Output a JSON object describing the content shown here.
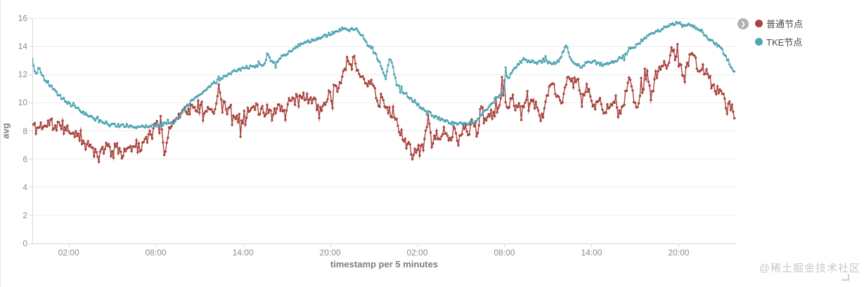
{
  "legend": {
    "toggle_icon": "❯",
    "items": [
      {
        "label": "普通节点",
        "color": "#a9423c"
      },
      {
        "label": "TKE节点",
        "color": "#4fa4b4"
      }
    ]
  },
  "watermark": "@稀土掘金技术社区",
  "theme": {
    "grid_color": "#ededed",
    "axis_color": "#d8d8d8",
    "tick_text_color": "#8c8c8c",
    "axis_title_color": "#7d7d7d"
  },
  "chart_data": {
    "type": "line",
    "title": "",
    "xlabel": "timestamp per 5 minutes",
    "ylabel": "avg",
    "grid": "horizontal",
    "legend_position": "top-right",
    "x_axis": {
      "title": "timestamp per 5 minutes",
      "total_hours": 48.4,
      "interval_minutes": 5,
      "ticks": [
        {
          "hour": 2.5,
          "label": "02:00"
        },
        {
          "hour": 8.5,
          "label": "08:00"
        },
        {
          "hour": 14.5,
          "label": "14:00"
        },
        {
          "hour": 20.5,
          "label": "20:00"
        },
        {
          "hour": 26.5,
          "label": "02:00"
        },
        {
          "hour": 32.5,
          "label": "08:00"
        },
        {
          "hour": 38.5,
          "label": "14:00"
        },
        {
          "hour": 44.5,
          "label": "20:00"
        }
      ]
    },
    "y_axis": {
      "title": "avg",
      "ticks": [
        0,
        2,
        4,
        6,
        8,
        10,
        12,
        14,
        16
      ],
      "range": [
        0,
        16
      ]
    },
    "series": [
      {
        "name": "普通节点",
        "color": "#a9423c",
        "noise": 0.42,
        "spike_prob": 0.12,
        "spike_mult": 2.2,
        "seed": 11,
        "marker_radius": 1.7,
        "keyframes": [
          [
            0,
            8.45
          ],
          [
            0.3,
            8.1
          ],
          [
            0.6,
            8.45
          ],
          [
            0.9,
            8.25
          ],
          [
            1.2,
            8.6
          ],
          [
            1.5,
            8.3
          ],
          [
            1.9,
            8.4
          ],
          [
            2.3,
            8.1
          ],
          [
            2.6,
            8.0
          ],
          [
            3.0,
            7.6
          ],
          [
            3.4,
            7.25
          ],
          [
            3.8,
            6.9
          ],
          [
            4.2,
            6.6
          ],
          [
            4.5,
            5.95
          ],
          [
            4.75,
            6.6
          ],
          [
            5.1,
            6.9
          ],
          [
            5.5,
            6.55
          ],
          [
            5.9,
            6.8
          ],
          [
            6.25,
            6.4
          ],
          [
            6.6,
            7.0
          ],
          [
            7.0,
            7.2
          ],
          [
            7.4,
            6.85
          ],
          [
            7.8,
            7.3
          ],
          [
            8.2,
            7.75
          ],
          [
            8.55,
            8.3
          ],
          [
            8.85,
            8.6
          ],
          [
            9.0,
            7.4
          ],
          [
            9.1,
            6.5
          ],
          [
            9.3,
            7.5
          ],
          [
            9.55,
            8.4
          ],
          [
            9.85,
            8.9
          ],
          [
            10.2,
            9.3
          ],
          [
            10.7,
            9.55
          ],
          [
            11.2,
            9.45
          ],
          [
            11.7,
            9.7
          ],
          [
            12.2,
            9.45
          ],
          [
            12.6,
            9.6
          ],
          [
            12.87,
            10.9
          ],
          [
            13.1,
            9.8
          ],
          [
            13.6,
            9.5
          ],
          [
            14.0,
            9.2
          ],
          [
            14.4,
            8.8
          ],
          [
            14.8,
            9.4
          ],
          [
            15.3,
            9.6
          ],
          [
            15.8,
            9.35
          ],
          [
            16.3,
            9.6
          ],
          [
            16.8,
            9.45
          ],
          [
            17.3,
            9.7
          ],
          [
            17.8,
            10.0
          ],
          [
            18.3,
            10.15
          ],
          [
            18.8,
            10.4
          ],
          [
            19.3,
            10.25
          ],
          [
            19.8,
            9.3
          ],
          [
            20.1,
            10.1
          ],
          [
            20.5,
            10.6
          ],
          [
            21.0,
            11.2
          ],
          [
            21.4,
            12.0
          ],
          [
            21.7,
            13.2
          ],
          [
            21.9,
            12.6
          ],
          [
            22.1,
            13.3
          ],
          [
            22.4,
            12.4
          ],
          [
            22.7,
            11.9
          ],
          [
            23.0,
            11.6
          ],
          [
            23.3,
            11.3
          ],
          [
            23.6,
            10.8
          ],
          [
            23.9,
            9.6
          ],
          [
            24.1,
            10.2
          ],
          [
            24.35,
            9.9
          ],
          [
            24.6,
            9.4
          ],
          [
            24.9,
            9.3
          ],
          [
            25.2,
            8.0
          ],
          [
            25.5,
            7.6
          ],
          [
            25.8,
            6.9
          ],
          [
            26.2,
            6.6
          ],
          [
            26.6,
            6.5
          ],
          [
            26.9,
            6.65
          ],
          [
            27.1,
            7.8
          ],
          [
            27.25,
            9.3
          ],
          [
            27.4,
            7.6
          ],
          [
            27.6,
            6.9
          ],
          [
            27.8,
            8.0
          ],
          [
            28.0,
            7.3
          ],
          [
            28.3,
            8.2
          ],
          [
            28.6,
            7.4
          ],
          [
            29.0,
            8.0
          ],
          [
            29.3,
            7.2
          ],
          [
            29.7,
            8.5
          ],
          [
            30.0,
            7.6
          ],
          [
            30.3,
            9.1
          ],
          [
            30.6,
            7.9
          ],
          [
            30.9,
            9.3
          ],
          [
            31.2,
            8.5
          ],
          [
            31.5,
            9.1
          ],
          [
            31.9,
            9.5
          ],
          [
            32.2,
            10.2
          ],
          [
            32.5,
            11.2
          ],
          [
            32.7,
            9.4
          ],
          [
            33.0,
            10.3
          ],
          [
            33.4,
            9.6
          ],
          [
            33.8,
            9.9
          ],
          [
            34.2,
            9.7
          ],
          [
            34.6,
            10.0
          ],
          [
            35.0,
            8.6
          ],
          [
            35.4,
            10.2
          ],
          [
            35.8,
            11.5
          ],
          [
            36.2,
            10.1
          ],
          [
            36.6,
            10.4
          ],
          [
            36.9,
            12.1
          ],
          [
            37.2,
            11.2
          ],
          [
            37.5,
            11.8
          ],
          [
            37.8,
            10.4
          ],
          [
            38.2,
            11.0
          ],
          [
            38.6,
            9.8
          ],
          [
            39.0,
            10.2
          ],
          [
            39.4,
            9.6
          ],
          [
            39.8,
            9.9
          ],
          [
            40.2,
            9.5
          ],
          [
            40.5,
            8.9
          ],
          [
            40.8,
            10.3
          ],
          [
            41.1,
            11.7
          ],
          [
            41.4,
            10.2
          ],
          [
            41.7,
            9.7
          ],
          [
            42.0,
            11.3
          ],
          [
            42.3,
            12.15
          ],
          [
            42.6,
            10.4
          ],
          [
            42.9,
            11.8
          ],
          [
            43.2,
            12.5
          ],
          [
            43.5,
            13.0
          ],
          [
            43.8,
            12.6
          ],
          [
            44.1,
            14.0
          ],
          [
            44.4,
            13.2
          ],
          [
            44.7,
            12.4
          ],
          [
            45.0,
            12.1
          ],
          [
            45.35,
            13.5
          ],
          [
            45.7,
            12.75
          ],
          [
            46.0,
            12.4
          ],
          [
            46.35,
            12.25
          ],
          [
            46.7,
            11.5
          ],
          [
            47.0,
            11.0
          ],
          [
            47.3,
            10.6
          ],
          [
            47.6,
            10.3
          ],
          [
            47.9,
            9.6
          ],
          [
            48.1,
            9.8
          ],
          [
            48.4,
            8.55
          ]
        ]
      },
      {
        "name": "TKE节点",
        "color": "#4fa4b4",
        "noise": 0.12,
        "spike_prob": 0.06,
        "spike_mult": 2.5,
        "seed": 5,
        "marker_radius": 1.6,
        "keyframes": [
          [
            0,
            13.05
          ],
          [
            0.15,
            12.4
          ],
          [
            0.3,
            11.85
          ],
          [
            0.45,
            12.55
          ],
          [
            0.6,
            12.15
          ],
          [
            0.8,
            11.75
          ],
          [
            1.1,
            11.4
          ],
          [
            1.6,
            10.75
          ],
          [
            2.1,
            10.3
          ],
          [
            2.6,
            9.9
          ],
          [
            3.1,
            9.55
          ],
          [
            3.6,
            9.25
          ],
          [
            4.1,
            8.95
          ],
          [
            4.6,
            8.7
          ],
          [
            5.1,
            8.55
          ],
          [
            5.6,
            8.45
          ],
          [
            6.2,
            8.35
          ],
          [
            7.0,
            8.3
          ],
          [
            7.8,
            8.35
          ],
          [
            8.5,
            8.4
          ],
          [
            9.2,
            8.5
          ],
          [
            9.7,
            8.6
          ],
          [
            10.0,
            8.85
          ],
          [
            10.4,
            9.4
          ],
          [
            10.8,
            9.95
          ],
          [
            11.2,
            10.3
          ],
          [
            11.6,
            10.65
          ],
          [
            12.0,
            11.0
          ],
          [
            12.4,
            11.35
          ],
          [
            12.8,
            11.6
          ],
          [
            13.2,
            11.85
          ],
          [
            13.7,
            12.1
          ],
          [
            14.2,
            12.35
          ],
          [
            14.7,
            12.5
          ],
          [
            15.3,
            12.6
          ],
          [
            15.8,
            12.7
          ],
          [
            16.05,
            12.75
          ],
          [
            16.2,
            13.6
          ],
          [
            16.4,
            12.85
          ],
          [
            16.8,
            12.9
          ],
          [
            17.2,
            13.3
          ],
          [
            17.6,
            13.55
          ],
          [
            18.0,
            13.8
          ],
          [
            18.4,
            14.1
          ],
          [
            18.8,
            14.3
          ],
          [
            19.3,
            14.45
          ],
          [
            19.8,
            14.55
          ],
          [
            20.2,
            14.75
          ],
          [
            20.6,
            14.95
          ],
          [
            21.0,
            15.1
          ],
          [
            21.3,
            15.25
          ],
          [
            21.55,
            15.4
          ],
          [
            21.8,
            15.1
          ],
          [
            22.1,
            15.3
          ],
          [
            22.45,
            15.15
          ],
          [
            22.8,
            14.6
          ],
          [
            23.1,
            14.15
          ],
          [
            23.35,
            13.9
          ],
          [
            23.7,
            13.3
          ],
          [
            24.0,
            12.6
          ],
          [
            24.2,
            12.1
          ],
          [
            24.35,
            11.75
          ],
          [
            24.5,
            12.7
          ],
          [
            24.62,
            13.3
          ],
          [
            24.8,
            12.6
          ],
          [
            25.1,
            11.3
          ],
          [
            25.5,
            10.85
          ],
          [
            26.0,
            10.3
          ],
          [
            26.5,
            9.85
          ],
          [
            27.0,
            9.5
          ],
          [
            27.5,
            9.15
          ],
          [
            28.0,
            8.85
          ],
          [
            28.5,
            8.7
          ],
          [
            29.2,
            8.45
          ],
          [
            29.7,
            8.5
          ],
          [
            30.1,
            8.55
          ],
          [
            30.5,
            8.7
          ],
          [
            30.9,
            9.1
          ],
          [
            31.3,
            9.6
          ],
          [
            31.7,
            10.05
          ],
          [
            32.0,
            10.35
          ],
          [
            32.3,
            10.6
          ],
          [
            32.5,
            11.0
          ],
          [
            32.55,
            12.6
          ],
          [
            32.7,
            11.7
          ],
          [
            32.9,
            11.9
          ],
          [
            33.2,
            12.4
          ],
          [
            33.5,
            12.8
          ],
          [
            33.9,
            13.15
          ],
          [
            34.3,
            13.0
          ],
          [
            34.7,
            12.85
          ],
          [
            35.1,
            13.05
          ],
          [
            35.5,
            12.9
          ],
          [
            35.9,
            12.8
          ],
          [
            36.3,
            12.95
          ],
          [
            36.65,
            13.9
          ],
          [
            36.8,
            14.05
          ],
          [
            37.0,
            13.3
          ],
          [
            37.4,
            12.75
          ],
          [
            37.8,
            12.55
          ],
          [
            38.2,
            12.85
          ],
          [
            38.6,
            12.95
          ],
          [
            39.0,
            12.75
          ],
          [
            39.4,
            12.7
          ],
          [
            39.8,
            12.8
          ],
          [
            40.2,
            13.0
          ],
          [
            40.7,
            13.3
          ],
          [
            41.2,
            13.75
          ],
          [
            41.7,
            14.2
          ],
          [
            42.2,
            14.6
          ],
          [
            42.7,
            14.9
          ],
          [
            43.2,
            15.15
          ],
          [
            43.7,
            15.4
          ],
          [
            44.1,
            15.55
          ],
          [
            44.5,
            15.7
          ],
          [
            44.9,
            15.45
          ],
          [
            45.3,
            15.55
          ],
          [
            45.7,
            15.35
          ],
          [
            46.1,
            15.1
          ],
          [
            46.45,
            14.6
          ],
          [
            46.8,
            14.35
          ],
          [
            47.4,
            13.9
          ],
          [
            47.9,
            13.0
          ],
          [
            48.4,
            12.0
          ]
        ]
      }
    ]
  }
}
